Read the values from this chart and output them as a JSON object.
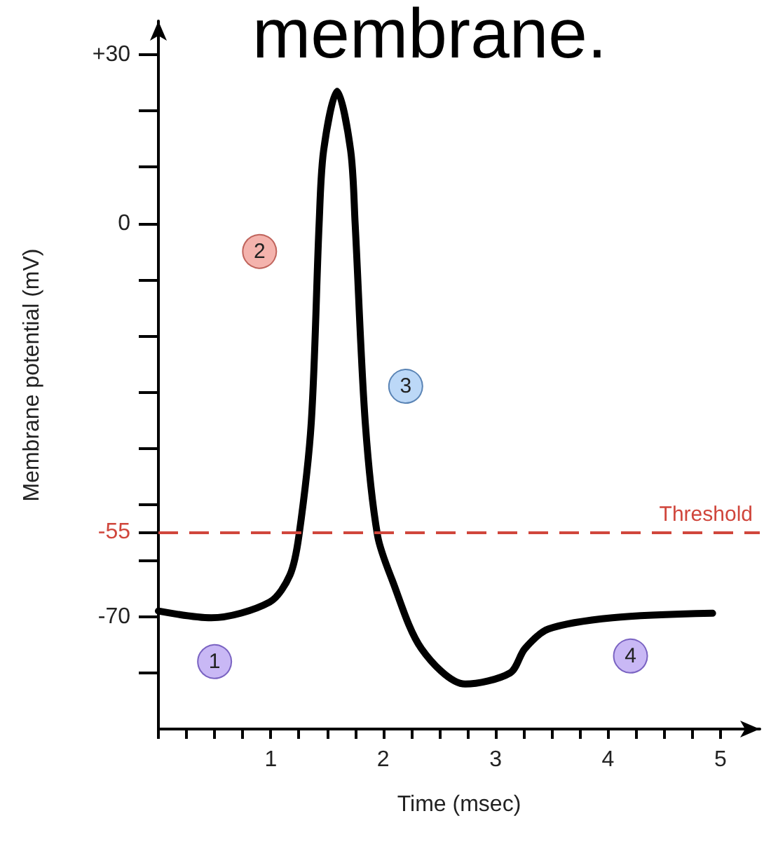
{
  "chart_data": {
    "type": "line",
    "title": "membrane.",
    "xlabel": "Time (msec)",
    "ylabel": "Membrane potential (mV)",
    "x": [
      0,
      0.47,
      0.99,
      1.17,
      1.25,
      1.36,
      1.43,
      1.47,
      1.59,
      1.71,
      1.75,
      1.84,
      1.95,
      2.08,
      2.34,
      2.73,
      3.13,
      3.26,
      3.47,
      4.04,
      4.93
    ],
    "series": [
      {
        "color": "#000000",
        "values": [
          -69,
          -70.2,
          -67.4,
          -62.6,
          -55.6,
          -35.4,
          0,
          13,
          23.5,
          13,
          0,
          -35.4,
          -55.6,
          -63.5,
          -75.7,
          -82,
          -80,
          -75.7,
          -72.2,
          -70.2,
          -69.4
        ]
      }
    ],
    "xlim": [
      0,
      5.35
    ],
    "xticks": [
      {
        "value": 0,
        "label": null
      },
      {
        "value": 0.25,
        "label": null
      },
      {
        "value": 0.5,
        "label": null
      },
      {
        "value": 0.75,
        "label": null
      },
      1,
      {
        "value": 1.25,
        "label": null
      },
      {
        "value": 1.5,
        "label": null
      },
      {
        "value": 1.75,
        "label": null
      },
      2,
      {
        "value": 2.25,
        "label": null
      },
      {
        "value": 2.5,
        "label": null
      },
      {
        "value": 2.75,
        "label": null
      },
      3,
      {
        "value": 3.25,
        "label": null
      },
      {
        "value": 3.5,
        "label": null
      },
      {
        "value": 3.75,
        "label": null
      },
      4,
      {
        "value": 4.25,
        "label": null
      },
      {
        "value": 4.5,
        "label": null
      },
      {
        "value": 4.75,
        "label": null
      },
      5
    ],
    "ylim": [
      -90,
      36
    ],
    "yticks": [
      {
        "value": 30,
        "label": "+30"
      },
      {
        "value": 20,
        "label": null
      },
      {
        "value": 10,
        "label": null
      },
      0,
      {
        "value": -10,
        "label": null
      },
      {
        "value": -20,
        "label": null
      },
      {
        "value": -30,
        "label": null
      },
      {
        "value": -40,
        "label": null
      },
      {
        "value": -50,
        "label": null
      },
      -55,
      {
        "value": -60,
        "label": null
      },
      -70,
      {
        "value": -80,
        "label": null
      }
    ],
    "ref_lines": [
      {
        "axis": "y",
        "value": -55,
        "label": "Threshold",
        "color": "#d0463c",
        "line_style": "dashed"
      }
    ],
    "annotations": [
      {
        "text": "1",
        "x": 0.5,
        "y": -78
      },
      {
        "text": "2",
        "x": 0.9,
        "y": -5
      },
      {
        "text": "3",
        "x": 2.2,
        "y": -29
      },
      {
        "text": "4",
        "x": 4.2,
        "y": -77
      }
    ],
    "grid": false,
    "marker": "none",
    "line_style": "solid"
  }
}
